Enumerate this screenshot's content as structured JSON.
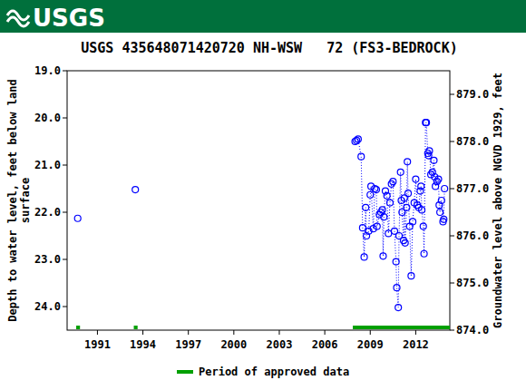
{
  "chart_data": {
    "type": "scatter",
    "logo": "USGS",
    "title": "USGS 435648071420720 NH-WSW   72 (FS3-BEDROCK)",
    "y_label": "Depth to water level, feet below land surface",
    "y2_label": "Groundwater level above NGVD 1929, feet",
    "legend_label": "Period of approved data",
    "approved_color": "#00a000",
    "approved_periods": [
      [
        1989.6,
        1989.85
      ],
      [
        1993.4,
        1993.65
      ],
      [
        2007.85,
        2014.25
      ]
    ],
    "xlim": [
      1989.0,
      2014.25
    ],
    "xticks": [
      1991,
      1994,
      1997,
      2000,
      2003,
      2006,
      2009,
      2012
    ],
    "ylim": [
      24.5,
      19.0
    ],
    "yticks": [
      {
        "value": 19,
        "label": "19.0"
      },
      {
        "value": 20,
        "label": "20.0"
      },
      {
        "value": 21,
        "label": "21.0"
      },
      {
        "value": 22,
        "label": "22.0"
      },
      {
        "value": 23,
        "label": "23.0"
      },
      {
        "value": 24,
        "label": "24.0"
      }
    ],
    "y2lim": [
      874.0,
      879.5
    ],
    "y2ticks": [
      {
        "value": 874,
        "label": "874.0"
      },
      {
        "value": 875,
        "label": "875.0"
      },
      {
        "value": 876,
        "label": "876.0"
      },
      {
        "value": 877,
        "label": "877.0"
      },
      {
        "value": 878,
        "label": "878.0"
      },
      {
        "value": 879,
        "label": "879.0"
      }
    ],
    "grid": false,
    "series": [
      {
        "name": "Depth to water level",
        "color": "#0000ff",
        "marker": "open-circle",
        "line_style": "dotted",
        "x": [
          1989.7,
          1991.5,
          1993.5,
          2000.0,
          2008.0,
          2008.1,
          2008.2,
          2008.4,
          2008.5,
          2008.6,
          2008.7,
          2008.75,
          2008.9,
          2009.0,
          2009.05,
          2009.2,
          2009.3,
          2009.4,
          2009.45,
          2009.6,
          2009.7,
          2009.8,
          2009.85,
          2009.9,
          2010.0,
          2010.1,
          2010.2,
          2010.3,
          2010.4,
          2010.5,
          2010.6,
          2010.7,
          2010.75,
          2010.85,
          2010.9,
          2011.0,
          2011.05,
          2011.1,
          2011.2,
          2011.25,
          2011.3,
          2011.4,
          2011.45,
          2011.5,
          2011.6,
          2011.7,
          2011.8,
          2011.9,
          2012.0,
          2012.1,
          2012.2,
          2012.3,
          2012.35,
          2012.4,
          2012.5,
          2012.55,
          2012.65,
          2012.7,
          2012.8,
          2012.85,
          2012.9,
          2013.0,
          2013.1,
          2013.2,
          2013.25,
          2013.3,
          2013.4,
          2013.5,
          2013.55,
          2013.6,
          2013.7,
          2013.8,
          2013.85,
          2013.9
        ],
        "values": [
          22.13,
          null,
          21.52,
          null,
          20.5,
          20.48,
          20.45,
          20.82,
          22.33,
          22.95,
          21.9,
          22.5,
          22.4,
          21.63,
          21.45,
          22.35,
          21.5,
          21.52,
          22.3,
          22.05,
          22.0,
          21.95,
          22.93,
          22.1,
          21.55,
          21.65,
          22.45,
          21.8,
          21.4,
          21.35,
          22.4,
          23.05,
          23.6,
          24.02,
          22.5,
          21.15,
          21.75,
          22.0,
          22.6,
          21.7,
          22.65,
          21.9,
          20.93,
          21.6,
          22.3,
          23.35,
          22.2,
          21.8,
          21.3,
          21.85,
          21.9,
          21.55,
          21.45,
          21.95,
          22.3,
          22.88,
          20.1,
          20.1,
          20.75,
          20.8,
          20.7,
          21.2,
          21.15,
          20.9,
          21.25,
          21.45,
          21.35,
          21.3,
          21.85,
          22.0,
          21.75,
          22.2,
          22.15,
          21.5
        ]
      }
    ]
  }
}
